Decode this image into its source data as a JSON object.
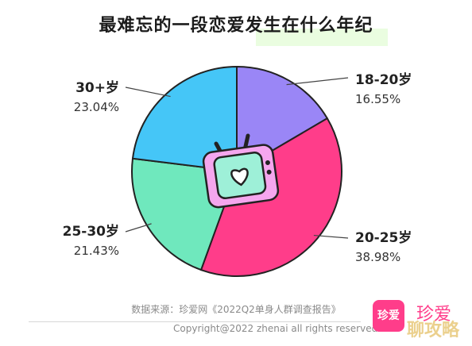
{
  "title": "最难忘的一段恋爱发生在什么年纪",
  "chart_data": {
    "type": "pie",
    "title": "最难忘的一段恋爱发生在什么年纪",
    "slices": [
      {
        "label": "18-20岁",
        "value": 16.55,
        "display": "16.55%",
        "color": "#9a86f6"
      },
      {
        "label": "20-25岁",
        "value": 38.98,
        "display": "38.98%",
        "color": "#ff3d8a"
      },
      {
        "label": "25-30岁",
        "value": 21.43,
        "display": "21.43%",
        "color": "#6fe8bd"
      },
      {
        "label": "30+岁",
        "value": 23.04,
        "display": "23.04%",
        "color": "#45c6f7"
      }
    ]
  },
  "footer": {
    "source": "数据来源：珍爱网《2022Q2单身人群调查报告》",
    "copyright": "Copyright@2022  zhenai  all rights reserved"
  },
  "logo": {
    "badge_text": "珍爱",
    "brand_text": "珍爱"
  },
  "watermark": "聊攻略"
}
